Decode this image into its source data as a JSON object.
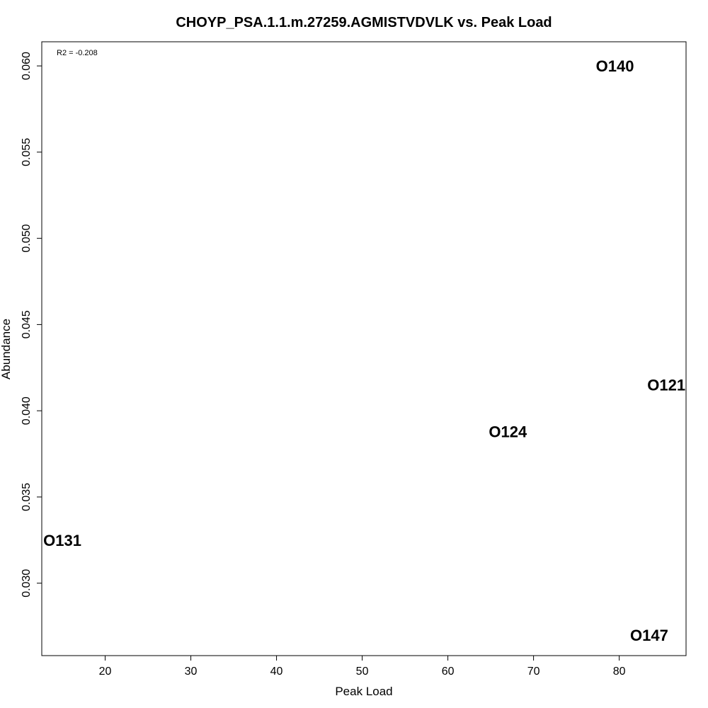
{
  "chart_data": {
    "type": "scatter",
    "title": "CHOYP_PSA.1.1.m.27259.AGMISTVDVLK vs. Peak Load",
    "xlabel": "Peak Load",
    "ylabel": "Abundance",
    "annotation": "R2 = -0.208",
    "xlim": [
      12.6,
      87.8
    ],
    "ylim": [
      0.0258,
      0.0614
    ],
    "x_ticks": [
      20,
      30,
      40,
      50,
      60,
      70,
      80
    ],
    "y_ticks": [
      0.03,
      0.035,
      0.04,
      0.045,
      0.05,
      0.055,
      0.06
    ],
    "y_tick_labels": [
      "0.030",
      "0.035",
      "0.040",
      "0.045",
      "0.050",
      "0.055",
      "0.060"
    ],
    "grid": false,
    "points": [
      {
        "label": "O140",
        "x": 79.5,
        "y": 0.06
      },
      {
        "label": "O121",
        "x": 85.5,
        "y": 0.0415
      },
      {
        "label": "O124",
        "x": 67.0,
        "y": 0.0388
      },
      {
        "label": "O131",
        "x": 15.0,
        "y": 0.0325
      },
      {
        "label": "O147",
        "x": 83.5,
        "y": 0.027
      }
    ]
  }
}
